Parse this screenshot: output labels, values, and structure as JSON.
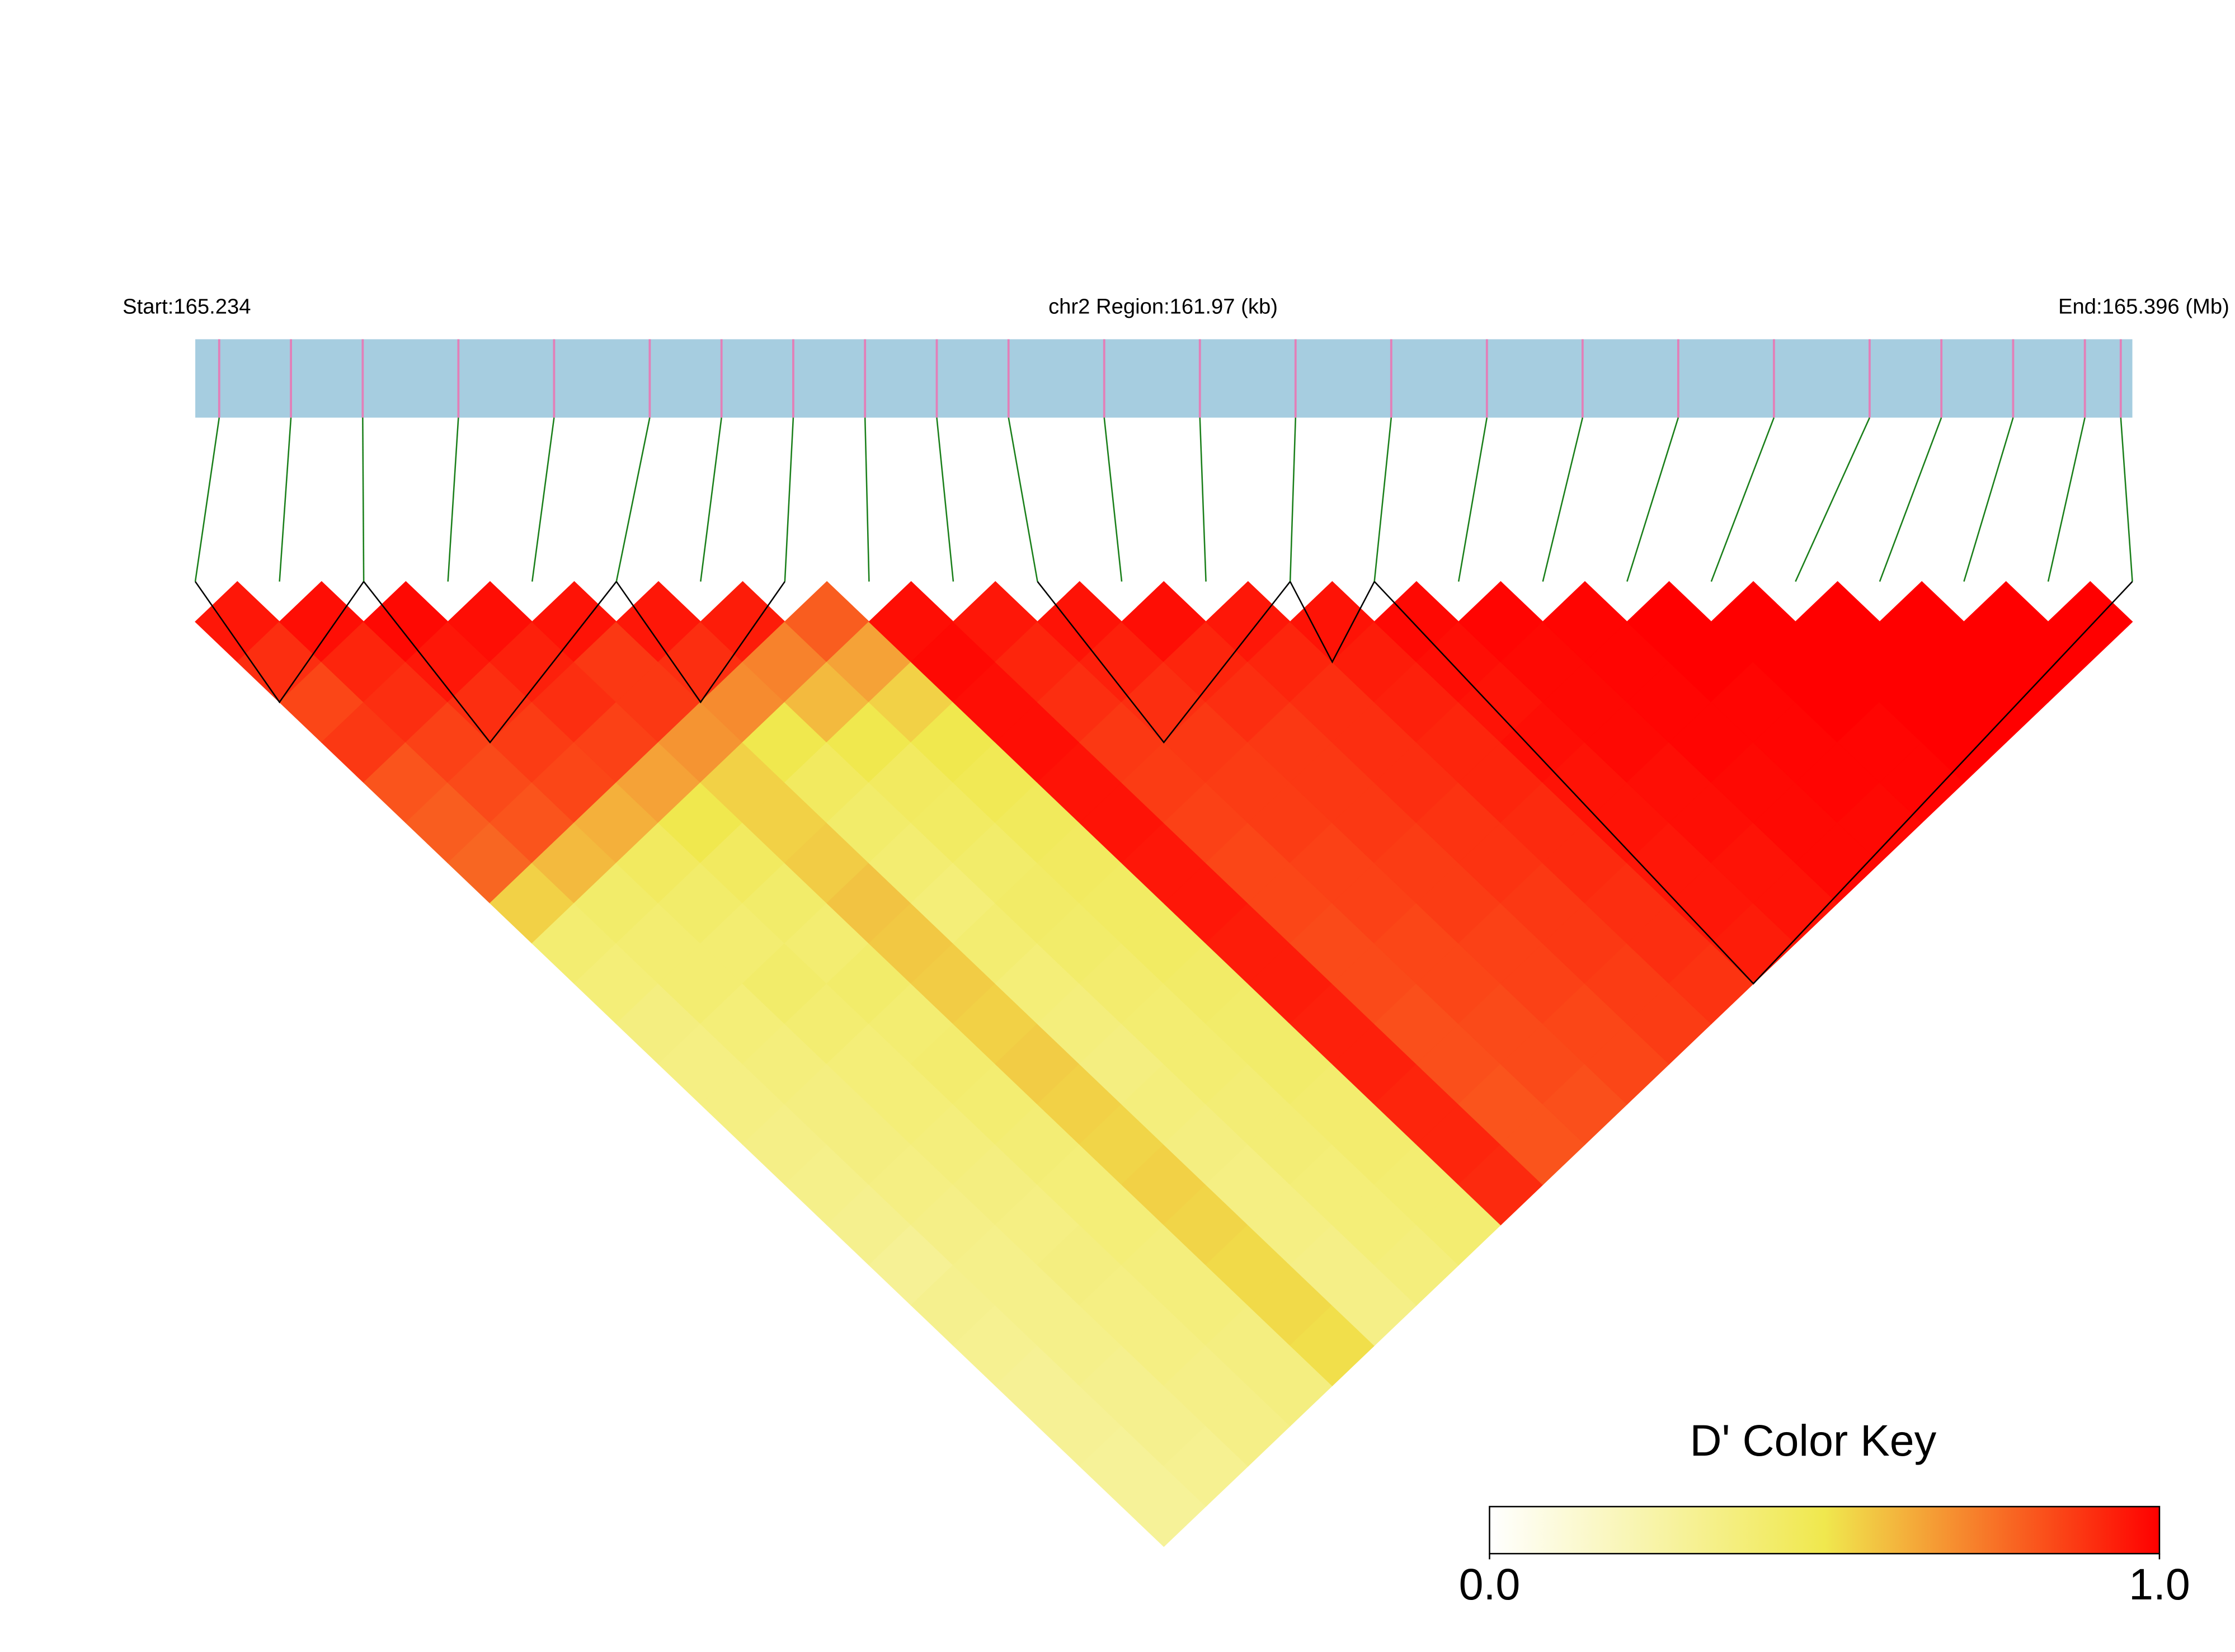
{
  "chart_data": {
    "type": "heatmap",
    "start_label": "Start:165.234",
    "region_label": "chr2 Region:161.97 (kb)",
    "end_label": "End:165.396 (Mb)",
    "key_title": "D' Color Key",
    "region_kb": 161.97,
    "snp_positions": [
      2,
      8,
      14,
      22,
      30,
      38,
      44,
      50,
      56,
      62,
      68,
      76,
      84,
      92,
      100,
      108,
      116,
      124,
      132,
      140,
      146,
      152,
      158,
      161
    ],
    "matrix": [
      [
        0.95
      ],
      [
        0.9,
        0.97
      ],
      [
        0.85,
        0.92,
        0.98
      ],
      [
        0.88,
        0.9,
        0.95,
        0.97
      ],
      [
        0.82,
        0.86,
        0.9,
        0.93,
        0.96
      ],
      [
        0.8,
        0.84,
        0.87,
        0.9,
        0.88,
        0.95
      ],
      [
        0.78,
        0.82,
        0.85,
        0.86,
        0.88,
        0.9,
        0.94
      ],
      [
        0.55,
        0.6,
        0.62,
        0.65,
        0.68,
        0.7,
        0.72,
        0.8
      ],
      [
        0.4,
        0.42,
        0.45,
        0.5,
        0.55,
        0.5,
        0.6,
        0.65,
        0.97
      ],
      [
        0.38,
        0.4,
        0.42,
        0.45,
        0.55,
        0.45,
        0.5,
        0.55,
        0.98,
        0.95
      ],
      [
        0.36,
        0.4,
        0.4,
        0.42,
        0.56,
        0.42,
        0.45,
        0.5,
        0.97,
        0.92,
        0.96
      ],
      [
        0.35,
        0.38,
        0.42,
        0.4,
        0.58,
        0.4,
        0.44,
        0.48,
        0.97,
        0.9,
        0.93,
        0.97
      ],
      [
        0.35,
        0.37,
        0.4,
        0.42,
        0.57,
        0.38,
        0.42,
        0.46,
        0.96,
        0.88,
        0.9,
        0.92,
        0.95
      ],
      [
        0.34,
        0.36,
        0.38,
        0.4,
        0.56,
        0.4,
        0.43,
        0.45,
        0.96,
        0.87,
        0.88,
        0.9,
        0.92,
        0.96
      ],
      [
        0.33,
        0.36,
        0.38,
        0.41,
        0.55,
        0.38,
        0.42,
        0.44,
        0.95,
        0.86,
        0.87,
        0.88,
        0.9,
        0.94,
        0.98
      ],
      [
        0.32,
        0.35,
        0.37,
        0.4,
        0.56,
        0.37,
        0.41,
        0.44,
        0.95,
        0.85,
        0.87,
        0.88,
        0.9,
        0.93,
        0.97,
        0.99
      ],
      [
        0.3,
        0.34,
        0.36,
        0.39,
        0.55,
        0.36,
        0.4,
        0.43,
        0.94,
        0.85,
        0.86,
        0.88,
        0.9,
        0.92,
        0.96,
        0.98,
        0.99
      ],
      [
        0.32,
        0.33,
        0.35,
        0.38,
        0.54,
        0.37,
        0.4,
        0.42,
        0.94,
        0.84,
        0.86,
        0.87,
        0.89,
        0.92,
        0.97,
        0.98,
        0.99,
        1
      ],
      [
        0.31,
        0.33,
        0.36,
        0.38,
        0.55,
        0.36,
        0.39,
        0.42,
        0.93,
        0.84,
        0.85,
        0.87,
        0.89,
        0.91,
        0.96,
        0.98,
        0.99,
        1,
        1
      ],
      [
        0.3,
        0.33,
        0.35,
        0.37,
        0.54,
        0.35,
        0.39,
        0.41,
        0.93,
        0.83,
        0.85,
        0.86,
        0.88,
        0.91,
        0.96,
        0.97,
        0.99,
        0.99,
        1,
        1
      ],
      [
        0.3,
        0.32,
        0.35,
        0.37,
        0.53,
        0.35,
        0.38,
        0.41,
        0.92,
        0.83,
        0.84,
        0.86,
        0.88,
        0.9,
        0.95,
        0.97,
        0.98,
        0.99,
        1,
        1,
        1
      ],
      [
        0.29,
        0.32,
        0.34,
        0.36,
        0.53,
        0.34,
        0.38,
        0.4,
        0.92,
        0.82,
        0.84,
        0.85,
        0.87,
        0.9,
        0.95,
        0.96,
        0.98,
        0.99,
        0.99,
        1,
        1,
        1
      ],
      [
        0.29,
        0.31,
        0.34,
        0.36,
        0.52,
        0.34,
        0.37,
        0.4,
        0.91,
        0.82,
        0.83,
        0.85,
        0.87,
        0.89,
        0.94,
        0.96,
        0.98,
        0.98,
        0.99,
        1,
        1,
        1,
        1
      ]
    ],
    "blocks": [
      [
        0,
        2
      ],
      [
        2,
        5
      ],
      [
        5,
        7
      ],
      [
        10,
        13
      ],
      [
        13,
        14
      ],
      [
        14,
        23
      ]
    ],
    "colors": [
      "#ffffff",
      "#f0e84e",
      "#ff0000"
    ],
    "key_ticks": [
      {
        "value": 0,
        "label": "0.0"
      },
      {
        "value": 1,
        "label": "1.0"
      }
    ],
    "track_color": "#a6cde0",
    "snp_color": "#e37fb8",
    "link_color": "#1a7f1a"
  }
}
